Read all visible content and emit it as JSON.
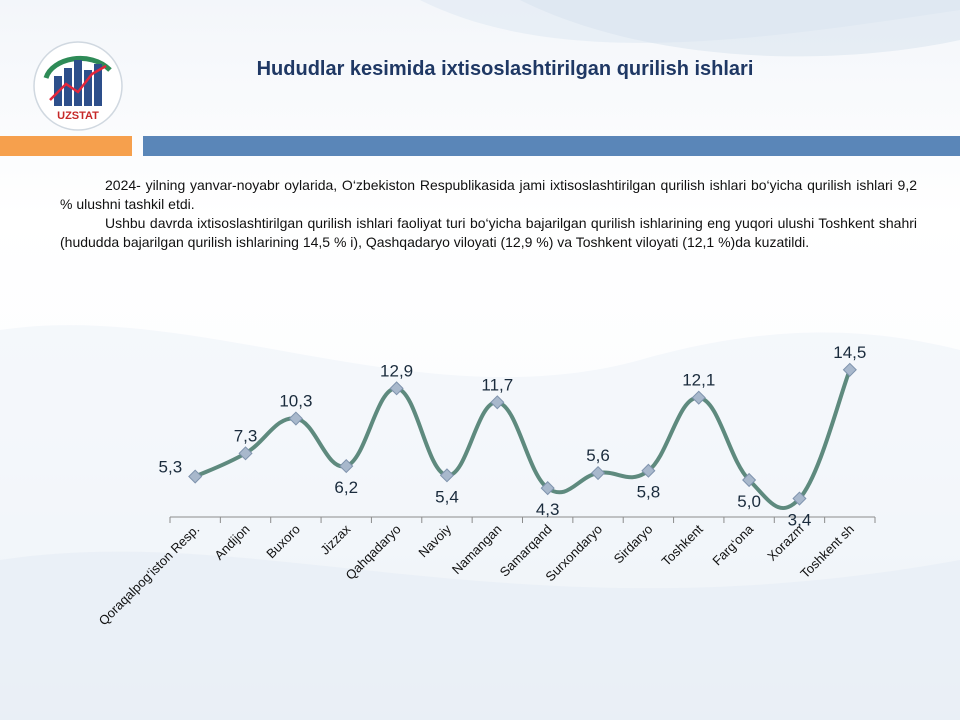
{
  "brand": {
    "logo_text": "UZSTAT"
  },
  "page": {
    "title": "Hududlar kesimida ixtisoslashtirilgan qurilish ishlari"
  },
  "text": {
    "para1": "2024- yilning yanvar-noyabr oylarida, O‘zbekiston Respublikasida jami ixtisoslashtirilgan qurilish ishlari bo‘yicha qurilish ishlari 9,2 % ulushni tashkil etdi.",
    "para2": "Ushbu davrda ixtisoslashtirilgan qurilish ishlari faoliyat turi bo‘yicha bajarilgan qurilish ishlarining eng yuqori ulushi Toshkent shahri (hududda bajarilgan qurilish ishlarining 14,5 % i), Qashqadaryo viloyati (12,9 %) va Toshkent viloyati (12,1 %)da kuzatildi."
  },
  "colors": {
    "line": "#5e8a7e",
    "marker": "#a8b8cc",
    "axis": "#8c8c8c",
    "title": "#1f3864",
    "accent_orange": "#f6a04d",
    "accent_blue": "#5a86b8"
  },
  "chart_data": {
    "type": "line",
    "smooth": true,
    "categories": [
      "Qoraqalpog‘iston Resp.",
      "Andijon",
      "Buxoro",
      "Jizzax",
      "Qahqadaryo",
      "Navoiy",
      "Namangan",
      "Samarqand",
      "Surxondaryo",
      "Sirdaryo",
      "Toshkent",
      "Farg‘ona",
      "Xorazm",
      "Toshkent sh"
    ],
    "values": [
      5.3,
      7.3,
      10.3,
      6.2,
      12.9,
      5.4,
      11.7,
      4.3,
      5.6,
      5.8,
      12.1,
      5.0,
      3.4,
      14.5
    ],
    "value_labels": [
      "5,3",
      "7,3",
      "10,3",
      "6,2",
      "12,9",
      "5,4",
      "11,7",
      "4,3",
      "5,6",
      "5,8",
      "12,1",
      "5,0",
      "3,4",
      "14,5"
    ],
    "label_side": [
      "above",
      "above",
      "above",
      "below",
      "above",
      "below",
      "above",
      "below",
      "above",
      "below",
      "above",
      "below",
      "below",
      "above"
    ],
    "label_anchor": [
      "end",
      "middle",
      "middle",
      "middle",
      "middle",
      "middle",
      "middle",
      "middle",
      "middle",
      "middle",
      "middle",
      "middle",
      "middle",
      "middle"
    ],
    "title": "",
    "xlabel": "",
    "ylabel": "",
    "legend": "none",
    "grid": false
  }
}
